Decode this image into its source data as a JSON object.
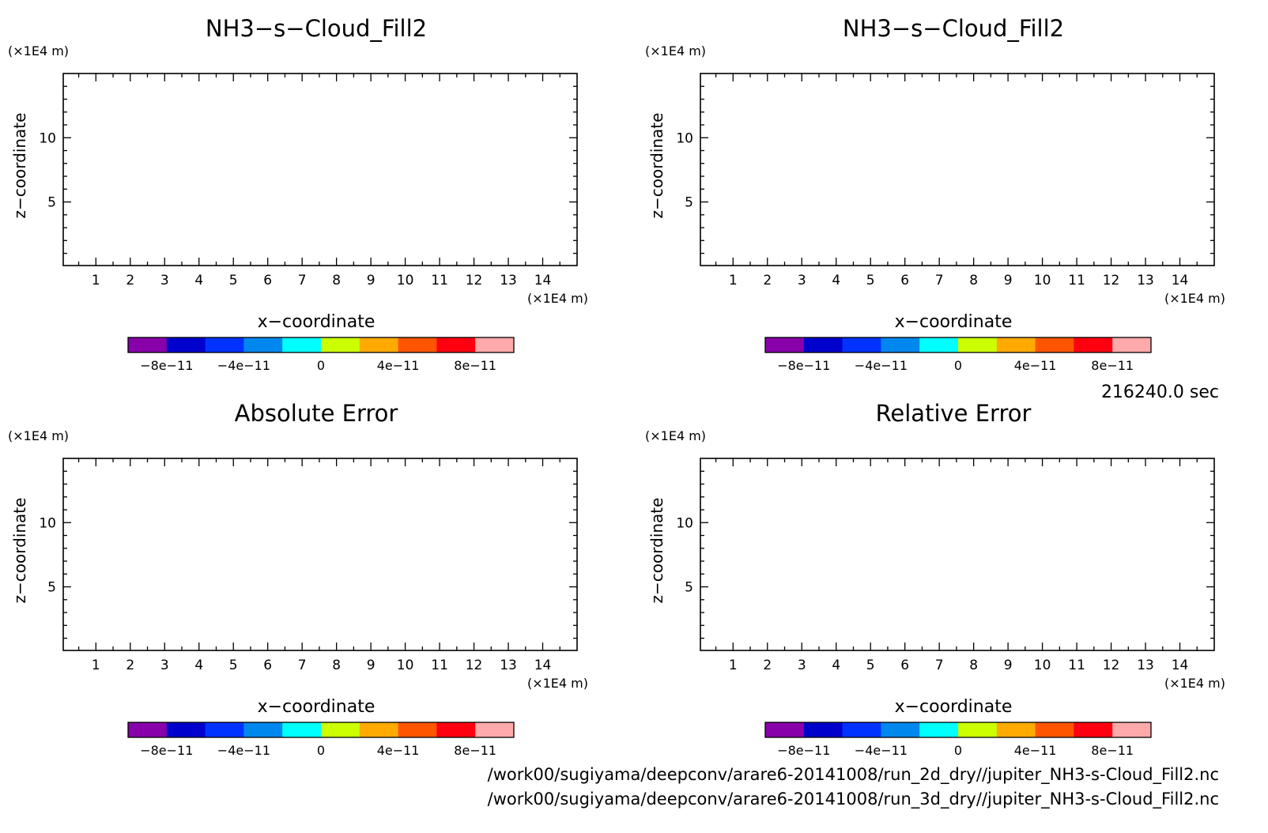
{
  "time_label": "216240.0 sec",
  "footer": {
    "file1": "/work00/sugiyama/deepconv/arare6-20141008/run_2d_dry//jupiter_NH3-s-Cloud_Fill2.nc",
    "file2": "/work00/sugiyama/deepconv/arare6-20141008/run_3d_dry//jupiter_NH3-s-Cloud_Fill2.nc"
  },
  "colorbar": {
    "colors": [
      "#8800aa",
      "#0000cc",
      "#0033ff",
      "#0088ee",
      "#00ffff",
      "#ccff00",
      "#ffaa00",
      "#ff5500",
      "#ff0011",
      "#ffaaaa"
    ],
    "ticks": [
      {
        "value": -8e-11,
        "label": "−8e−11"
      },
      {
        "value": -4e-11,
        "label": "−4e−11"
      },
      {
        "value": 0,
        "label": "0"
      },
      {
        "value": 4e-11,
        "label": "4e−11"
      },
      {
        "value": 8e-11,
        "label": "8e−11"
      }
    ],
    "range": [
      -1e-10,
      1e-10
    ]
  },
  "chart_data": [
    {
      "type": "heatmap",
      "title": "NH3−s−Cloud_Fill2",
      "xlabel": "x−coordinate",
      "ylabel": "z−coordinate",
      "x_unit": "(×1E4 m)",
      "y_unit": "(×1E4 m)",
      "xlim": [
        0.05,
        15
      ],
      "ylim": [
        0.05,
        15
      ],
      "xticks": [
        1,
        2,
        3,
        4,
        5,
        6,
        7,
        8,
        9,
        10,
        11,
        12,
        13,
        14
      ],
      "yticks": [
        5,
        10
      ],
      "values": []
    },
    {
      "type": "heatmap",
      "title": "NH3−s−Cloud_Fill2",
      "xlabel": "x−coordinate",
      "ylabel": "z−coordinate",
      "x_unit": "(×1E4 m)",
      "y_unit": "(×1E4 m)",
      "xlim": [
        0.05,
        15
      ],
      "ylim": [
        0.05,
        15
      ],
      "xticks": [
        1,
        2,
        3,
        4,
        5,
        6,
        7,
        8,
        9,
        10,
        11,
        12,
        13,
        14
      ],
      "yticks": [
        5,
        10
      ],
      "values": []
    },
    {
      "type": "heatmap",
      "title": "Absolute Error",
      "xlabel": "x−coordinate",
      "ylabel": "z−coordinate",
      "x_unit": "(×1E4 m)",
      "y_unit": "(×1E4 m)",
      "xlim": [
        0.05,
        15
      ],
      "ylim": [
        0.05,
        15
      ],
      "xticks": [
        1,
        2,
        3,
        4,
        5,
        6,
        7,
        8,
        9,
        10,
        11,
        12,
        13,
        14
      ],
      "yticks": [
        5,
        10
      ],
      "values": []
    },
    {
      "type": "heatmap",
      "title": "Relative Error",
      "xlabel": "x−coordinate",
      "ylabel": "z−coordinate",
      "x_unit": "(×1E4 m)",
      "y_unit": "(×1E4 m)",
      "xlim": [
        0.05,
        15
      ],
      "ylim": [
        0.05,
        15
      ],
      "xticks": [
        1,
        2,
        3,
        4,
        5,
        6,
        7,
        8,
        9,
        10,
        11,
        12,
        13,
        14
      ],
      "yticks": [
        5,
        10
      ],
      "values": []
    }
  ]
}
